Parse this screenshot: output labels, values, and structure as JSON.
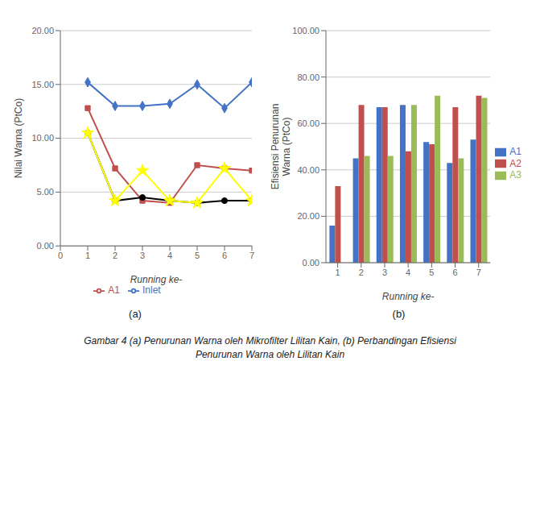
{
  "chart_data": [
    {
      "type": "line",
      "xlabel": "Running ke-",
      "ylabel": "Nilai Warna (PtCo)",
      "annotations": [
        "(a)"
      ],
      "x": [
        1,
        2,
        3,
        4,
        5,
        6,
        7
      ],
      "xlim": [
        0,
        7
      ],
      "xticks": [
        0,
        1,
        2,
        3,
        4,
        5,
        6,
        7
      ],
      "ylim": [
        0,
        20
      ],
      "yticks": [
        {
          "value": 0,
          "label": "0.00"
        },
        {
          "value": 5,
          "label": "5.00"
        },
        {
          "value": 10,
          "label": "10.00"
        },
        {
          "value": 15,
          "label": "15.00"
        },
        {
          "value": 20,
          "label": "20.00"
        }
      ],
      "grid": true,
      "legend": "bottom",
      "series": [
        {
          "name": "Inlet",
          "color": "#4472C4",
          "marker": "diamond",
          "values": [
            15.2,
            13.0,
            13.0,
            13.2,
            15.0,
            12.8,
            15.2
          ]
        },
        {
          "name": "A1",
          "color": "#C0504D",
          "marker": "square",
          "values": [
            12.8,
            7.2,
            4.2,
            4.0,
            7.5,
            7.2,
            7.0
          ]
        },
        {
          "color": "#000000",
          "marker": "circle",
          "values": [
            10.5,
            4.2,
            4.5,
            4.2,
            4.0,
            4.2,
            4.2
          ]
        },
        {
          "color": "#FFFF00",
          "marker": "star",
          "values": [
            10.5,
            4.2,
            7.0,
            4.2,
            4.0,
            7.2,
            4.2
          ]
        }
      ]
    },
    {
      "type": "bar",
      "xlabel": "Running ke-",
      "ylabel": "Efisiensi Penurunan\nWarna (PtCo)",
      "annotations": [
        "(b)"
      ],
      "categories": [
        "1",
        "2",
        "3",
        "4",
        "5",
        "6",
        "7"
      ],
      "ylim": [
        0,
        100
      ],
      "yticks": [
        {
          "value": 0,
          "label": "0.00"
        },
        {
          "value": 20,
          "label": "20.00"
        },
        {
          "value": 40,
          "label": "40.00"
        },
        {
          "value": 60,
          "label": "60.00"
        },
        {
          "value": 80,
          "label": "80.00"
        },
        {
          "value": 100,
          "label": "100.00"
        }
      ],
      "grid": true,
      "legend": "right",
      "series": [
        {
          "name": "A1",
          "color": "#4472C4",
          "values": [
            16.0,
            45.0,
            67.0,
            68.0,
            52.0,
            43.0,
            53.0
          ]
        },
        {
          "name": "A2",
          "color": "#C0504D",
          "values": [
            33.0,
            68.0,
            67.0,
            48.0,
            51.0,
            67.0,
            72.0
          ]
        },
        {
          "name": "A3",
          "color": "#9BBB59",
          "values": [
            0.0,
            46.0,
            46.0,
            68.0,
            72.0,
            45.0,
            71.0
          ]
        }
      ]
    }
  ],
  "annotations": [
    "Gambar 4 (a) Penurunan Warna oleh Mikrofilter Lilitan Kain, (b) Perbandingan Efisiensi",
    "Penurunan Warna oleh Lilitan Kain"
  ]
}
